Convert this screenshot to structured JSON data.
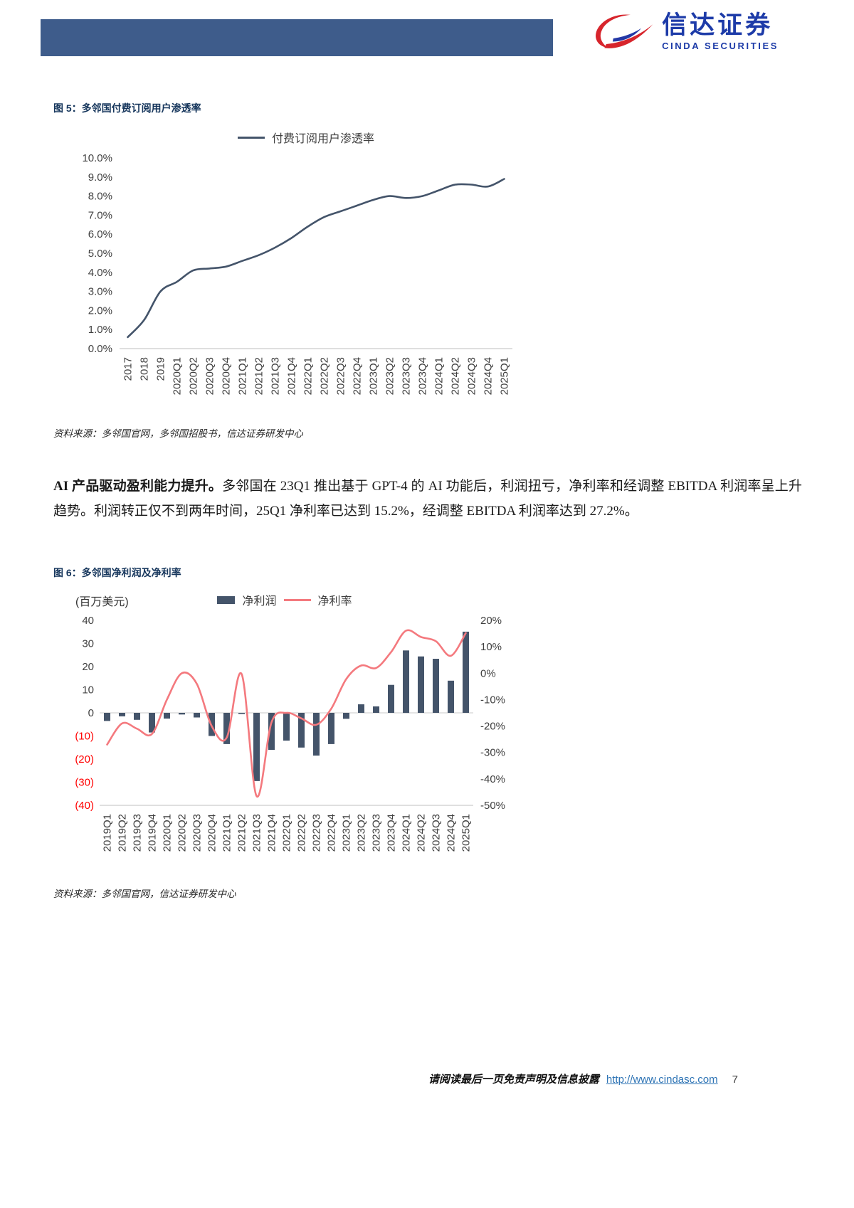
{
  "header": {
    "brand_cn": "信达证券",
    "brand_en": "CINDA SECURITIES"
  },
  "figure5": {
    "title": "图 5：多邻国付费订阅用户渗透率",
    "source": "资料来源：多邻国官网，多邻国招股书，信达证券研发中心"
  },
  "body_paragraph": {
    "lead": "AI 产品驱动盈利能力提升。",
    "text": "多邻国在 23Q1 推出基于 GPT-4 的 AI 功能后，利润扭亏，净利率和经调整 EBITDA 利润率呈上升趋势。利润转正仅不到两年时间，25Q1 净利率已达到 15.2%，经调整 EBITDA 利润率达到 27.2%。"
  },
  "figure6": {
    "title": "图 6：多邻国净利润及净利率",
    "source": "资料来源：多邻国官网，信达证券研发中心"
  },
  "footer": {
    "disclaimer": "请阅读最后一页免责声明及信息披露",
    "url": "http://www.cindasc.com",
    "page": "7"
  },
  "colors": {
    "header_bar": "#3E5C8B",
    "brand_blue": "#1D3BA8",
    "logo_red": "#D7252C",
    "bar_navy": "#44546A",
    "line_pink": "#F4797E",
    "negative_red": "#FF0000",
    "link_blue": "#2E74B5"
  },
  "chart_data": [
    {
      "type": "line",
      "title": "多邻国付费订阅用户渗透率",
      "legend_position": "top",
      "grid": false,
      "categories": [
        "2017",
        "2018",
        "2019",
        "2020Q1",
        "2020Q2",
        "2020Q3",
        "2020Q4",
        "2021Q1",
        "2021Q2",
        "2021Q3",
        "2021Q4",
        "2022Q1",
        "2022Q2",
        "2022Q3",
        "2022Q4",
        "2023Q1",
        "2023Q2",
        "2023Q3",
        "2023Q4",
        "2024Q1",
        "2024Q2",
        "2024Q3",
        "2024Q4",
        "2025Q1"
      ],
      "series": [
        {
          "name": "付费订阅用户渗透率",
          "type": "line",
          "color": "#44546A",
          "values": [
            0.6,
            1.5,
            3.0,
            3.5,
            4.1,
            4.2,
            4.3,
            4.6,
            4.9,
            5.3,
            5.8,
            6.4,
            6.9,
            7.2,
            7.5,
            7.8,
            8.0,
            7.9,
            8.0,
            8.3,
            8.6,
            8.6,
            8.5,
            8.9
          ]
        }
      ],
      "ylim": [
        0,
        10
      ],
      "ytick_step": 1,
      "ytick_suffix": "%",
      "ytick_decimals": 1,
      "xlabel": "",
      "ylabel": ""
    },
    {
      "type": "combo",
      "title": "多邻国净利润及净利率",
      "unit_label": "(百万美元)",
      "legend_position": "top",
      "grid": false,
      "categories": [
        "2019Q1",
        "2019Q2",
        "2019Q3",
        "2019Q4",
        "2020Q1",
        "2020Q2",
        "2020Q3",
        "2020Q4",
        "2021Q1",
        "2021Q2",
        "2021Q3",
        "2021Q4",
        "2022Q1",
        "2022Q2",
        "2022Q3",
        "2022Q4",
        "2023Q1",
        "2023Q2",
        "2023Q3",
        "2023Q4",
        "2024Q1",
        "2024Q2",
        "2024Q3",
        "2024Q4",
        "2025Q1"
      ],
      "series": [
        {
          "name": "净利润",
          "type": "bar",
          "axis": "left",
          "color": "#44546A",
          "values": [
            -3.5,
            -1.5,
            -3.0,
            -8.5,
            -2.5,
            -0.7,
            -2.0,
            -10.0,
            -13.5,
            -0.5,
            -29.5,
            -16.0,
            -12.0,
            -15.0,
            -18.5,
            -13.5,
            -2.6,
            3.7,
            2.8,
            12.1,
            27.0,
            24.4,
            23.4,
            13.9,
            35.1
          ]
        },
        {
          "name": "净利率",
          "type": "line",
          "axis": "right",
          "color": "#F4797E",
          "values": [
            -27,
            -19,
            -21,
            -23,
            -10,
            0,
            -4,
            -20,
            -24.4,
            -0.3,
            -46.5,
            -18.6,
            -15.0,
            -17.1,
            -19.5,
            -13.4,
            -2.2,
            2.9,
            2.0,
            8.0,
            16.1,
            13.7,
            12.1,
            6.6,
            15.2
          ]
        }
      ],
      "left_axis": {
        "ylim": [
          -40,
          40
        ],
        "tick_step": 10,
        "negative_style": "parentheses-red"
      },
      "right_axis": {
        "ylim": [
          -50,
          20
        ],
        "tick_step": 10,
        "suffix": "%"
      }
    }
  ]
}
